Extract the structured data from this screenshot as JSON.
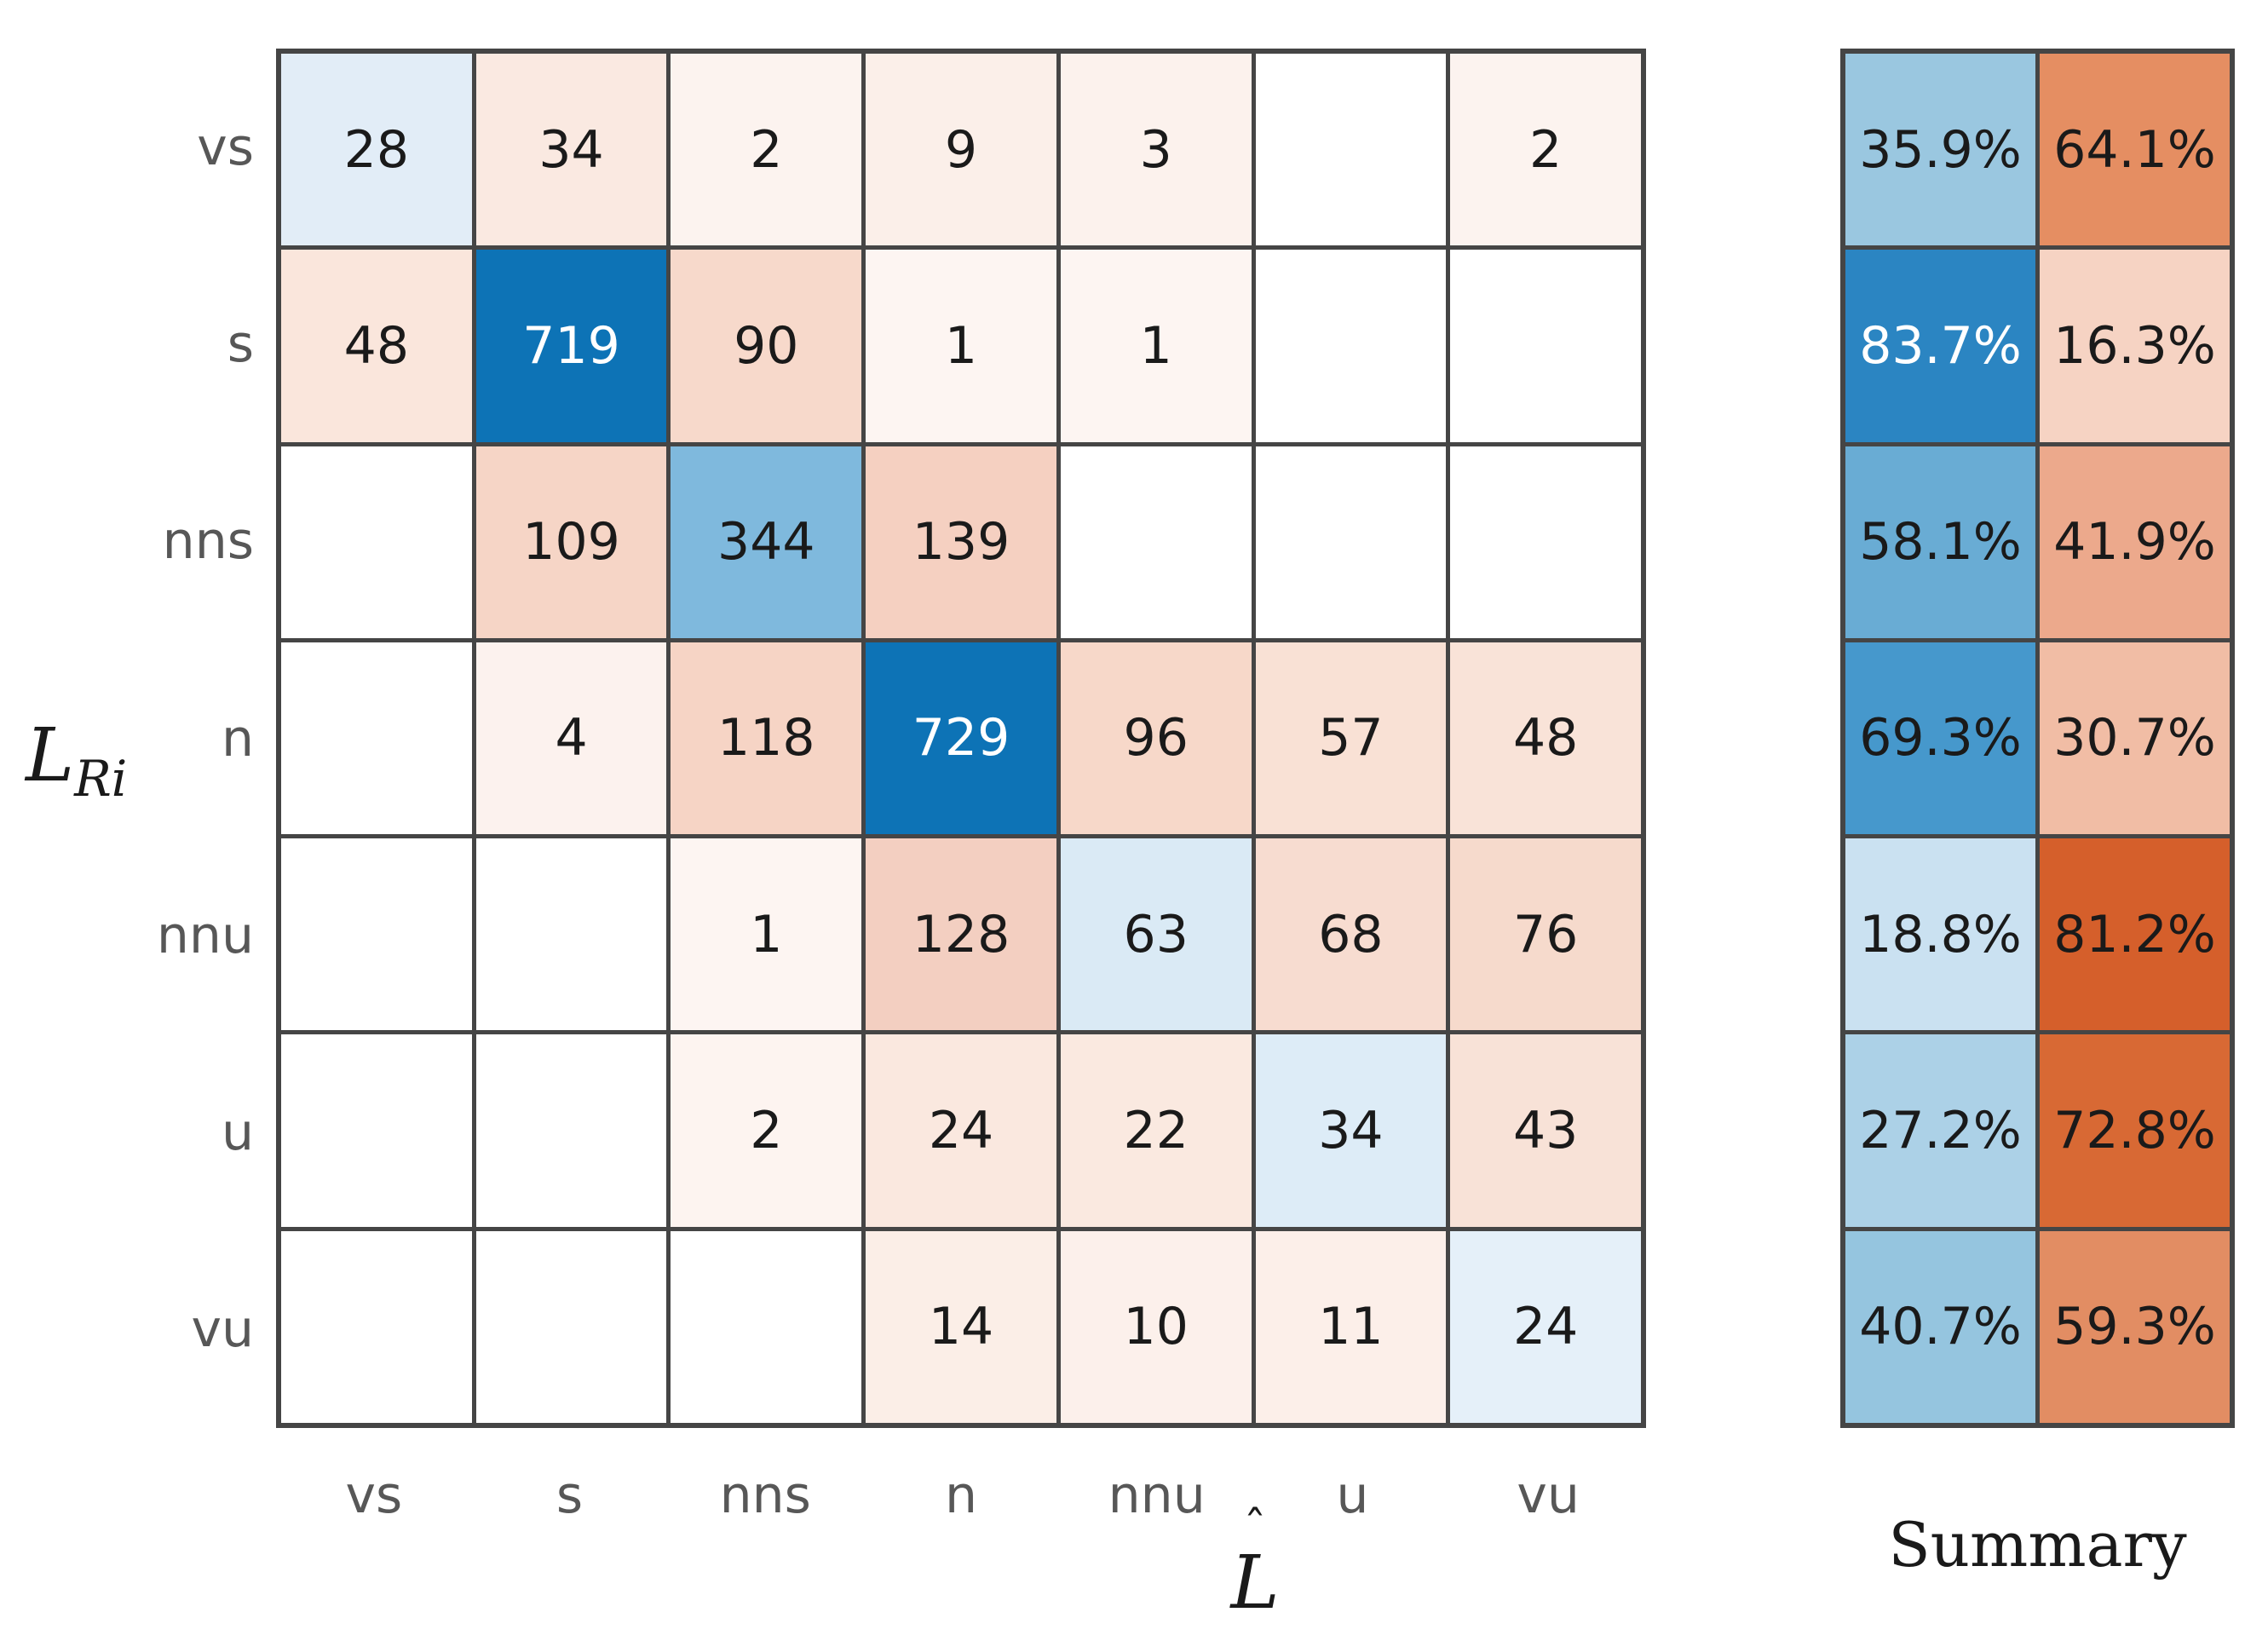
{
  "colors": {
    "background": "#ffffff",
    "grid_line": "#454545",
    "tick_label": "#575757",
    "cell_text_dark": "#1a1a1a",
    "cell_text_light": "#ffffff",
    "strong_blue": "#0d73b6",
    "strong_orange": "#d55f2b"
  },
  "axes": {
    "y_label_base": "L",
    "y_label_subscript": "Ri",
    "x_label_hat": "ˆ",
    "x_label_base": "L",
    "summary_title": "Summary"
  },
  "matrix": {
    "row_ticks": [
      "vs",
      "s",
      "nns",
      "n",
      "nnu",
      "u",
      "vu"
    ],
    "col_ticks": [
      "vs",
      "s",
      "nns",
      "n",
      "nnu",
      "u",
      "vu"
    ],
    "cells": [
      [
        {
          "text": "28",
          "bg": "#e2edf7",
          "fg": "#1a1a1a"
        },
        {
          "text": "34",
          "bg": "#fae9e1",
          "fg": "#1a1a1a"
        },
        {
          "text": "2",
          "bg": "#fcf3ef",
          "fg": "#1a1a1a"
        },
        {
          "text": "9",
          "bg": "#fbefe9",
          "fg": "#1a1a1a"
        },
        {
          "text": "3",
          "bg": "#fcf2ed",
          "fg": "#1a1a1a"
        },
        {
          "text": "",
          "bg": "#ffffff",
          "fg": "#1a1a1a"
        },
        {
          "text": "2",
          "bg": "#fcf3ef",
          "fg": "#1a1a1a"
        }
      ],
      [
        {
          "text": "48",
          "bg": "#fae6dc",
          "fg": "#1a1a1a"
        },
        {
          "text": "719",
          "bg": "#0d73b6",
          "fg": "#ffffff"
        },
        {
          "text": "90",
          "bg": "#f7d9cb",
          "fg": "#1a1a1a"
        },
        {
          "text": "1",
          "bg": "#fdf5f2",
          "fg": "#1a1a1a"
        },
        {
          "text": "1",
          "bg": "#fdf5f2",
          "fg": "#1a1a1a"
        },
        {
          "text": "",
          "bg": "#ffffff",
          "fg": "#1a1a1a"
        },
        {
          "text": "",
          "bg": "#ffffff",
          "fg": "#1a1a1a"
        }
      ],
      [
        {
          "text": "",
          "bg": "#ffffff",
          "fg": "#1a1a1a"
        },
        {
          "text": "109",
          "bg": "#f6d5c6",
          "fg": "#1a1a1a"
        },
        {
          "text": "344",
          "bg": "#7fb9dd",
          "fg": "#1a1a1a"
        },
        {
          "text": "139",
          "bg": "#f5d0c1",
          "fg": "#1a1a1a"
        },
        {
          "text": "",
          "bg": "#ffffff",
          "fg": "#1a1a1a"
        },
        {
          "text": "",
          "bg": "#ffffff",
          "fg": "#1a1a1a"
        },
        {
          "text": "",
          "bg": "#ffffff",
          "fg": "#1a1a1a"
        }
      ],
      [
        {
          "text": "",
          "bg": "#ffffff",
          "fg": "#1a1a1a"
        },
        {
          "text": "4",
          "bg": "#fcf2ee",
          "fg": "#1a1a1a"
        },
        {
          "text": "118",
          "bg": "#f6d4c5",
          "fg": "#1a1a1a"
        },
        {
          "text": "729",
          "bg": "#0d73b6",
          "fg": "#ffffff"
        },
        {
          "text": "96",
          "bg": "#f7d8c9",
          "fg": "#1a1a1a"
        },
        {
          "text": "57",
          "bg": "#f9e1d5",
          "fg": "#1a1a1a"
        },
        {
          "text": "48",
          "bg": "#f9e3d8",
          "fg": "#1a1a1a"
        }
      ],
      [
        {
          "text": "",
          "bg": "#ffffff",
          "fg": "#1a1a1a"
        },
        {
          "text": "",
          "bg": "#ffffff",
          "fg": "#1a1a1a"
        },
        {
          "text": "1",
          "bg": "#fdf5f2",
          "fg": "#1a1a1a"
        },
        {
          "text": "128",
          "bg": "#f3cfc1",
          "fg": "#1a1a1a"
        },
        {
          "text": "63",
          "bg": "#daeaf5",
          "fg": "#1a1a1a"
        },
        {
          "text": "68",
          "bg": "#f7dcd0",
          "fg": "#1a1a1a"
        },
        {
          "text": "76",
          "bg": "#f6dacc",
          "fg": "#1a1a1a"
        }
      ],
      [
        {
          "text": "",
          "bg": "#ffffff",
          "fg": "#1a1a1a"
        },
        {
          "text": "",
          "bg": "#ffffff",
          "fg": "#1a1a1a"
        },
        {
          "text": "2",
          "bg": "#fdf4f0",
          "fg": "#1a1a1a"
        },
        {
          "text": "24",
          "bg": "#fae8df",
          "fg": "#1a1a1a"
        },
        {
          "text": "22",
          "bg": "#fae9e0",
          "fg": "#1a1a1a"
        },
        {
          "text": "34",
          "bg": "#ddecf7",
          "fg": "#1a1a1a"
        },
        {
          "text": "43",
          "bg": "#f8e2d7",
          "fg": "#1a1a1a"
        }
      ],
      [
        {
          "text": "",
          "bg": "#ffffff",
          "fg": "#1a1a1a"
        },
        {
          "text": "",
          "bg": "#ffffff",
          "fg": "#1a1a1a"
        },
        {
          "text": "",
          "bg": "#ffffff",
          "fg": "#1a1a1a"
        },
        {
          "text": "14",
          "bg": "#fbeee7",
          "fg": "#1a1a1a"
        },
        {
          "text": "10",
          "bg": "#fcf0eb",
          "fg": "#1a1a1a"
        },
        {
          "text": "11",
          "bg": "#fcefe9",
          "fg": "#1a1a1a"
        },
        {
          "text": "24",
          "bg": "#e5f0f9",
          "fg": "#1a1a1a"
        }
      ]
    ]
  },
  "summary": {
    "cells": [
      [
        {
          "text": "35.9%",
          "bg": "#9ac7e0",
          "fg": "#1a1a1a"
        },
        {
          "text": "64.1%",
          "bg": "#e58e62",
          "fg": "#1a1a1a"
        }
      ],
      [
        {
          "text": "83.7%",
          "bg": "#2b85c2",
          "fg": "#ffffff"
        },
        {
          "text": "16.3%",
          "bg": "#f6d3c3",
          "fg": "#1a1a1a"
        }
      ],
      [
        {
          "text": "58.1%",
          "bg": "#69acd4",
          "fg": "#1a1a1a"
        },
        {
          "text": "41.9%",
          "bg": "#eca98c",
          "fg": "#1a1a1a"
        }
      ],
      [
        {
          "text": "69.3%",
          "bg": "#4698cc",
          "fg": "#1a1a1a"
        },
        {
          "text": "30.7%",
          "bg": "#f1bda5",
          "fg": "#1a1a1a"
        }
      ],
      [
        {
          "text": "18.8%",
          "bg": "#cae1f1",
          "fg": "#1a1a1a"
        },
        {
          "text": "81.2%",
          "bg": "#d55f2b",
          "fg": "#1a1a1a"
        }
      ],
      [
        {
          "text": "27.2%",
          "bg": "#acd1e7",
          "fg": "#1a1a1a"
        },
        {
          "text": "72.8%",
          "bg": "#d86934",
          "fg": "#1a1a1a"
        }
      ],
      [
        {
          "text": "40.7%",
          "bg": "#95c5df",
          "fg": "#1a1a1a"
        },
        {
          "text": "59.3%",
          "bg": "#e28d63",
          "fg": "#1a1a1a"
        }
      ]
    ]
  },
  "chart_data": {
    "type": "heatmap",
    "title": "",
    "row_axis_label": "L_Ri",
    "col_axis_label": "L_hat",
    "rows": [
      "vs",
      "s",
      "nns",
      "n",
      "nnu",
      "u",
      "vu"
    ],
    "cols": [
      "vs",
      "s",
      "nns",
      "n",
      "nnu",
      "u",
      "vu"
    ],
    "values": [
      [
        28,
        34,
        2,
        9,
        3,
        null,
        2
      ],
      [
        48,
        719,
        90,
        1,
        1,
        null,
        null
      ],
      [
        null,
        109,
        344,
        139,
        null,
        null,
        null
      ],
      [
        null,
        4,
        118,
        729,
        96,
        57,
        48
      ],
      [
        null,
        null,
        1,
        128,
        63,
        68,
        76
      ],
      [
        null,
        null,
        2,
        24,
        22,
        34,
        43
      ],
      [
        null,
        null,
        null,
        14,
        10,
        11,
        24
      ]
    ],
    "colormap": "diverging blue (diagonal/correct) to orange (off-diagonal/incorrect)",
    "grid": true,
    "summary_panel": {
      "title": "Summary",
      "columns": [
        "correct_pct",
        "incorrect_pct"
      ],
      "values": [
        [
          35.9,
          64.1
        ],
        [
          83.7,
          16.3
        ],
        [
          58.1,
          41.9
        ],
        [
          69.3,
          30.7
        ],
        [
          18.8,
          81.2
        ],
        [
          27.2,
          72.8
        ],
        [
          40.7,
          59.3
        ]
      ]
    }
  }
}
